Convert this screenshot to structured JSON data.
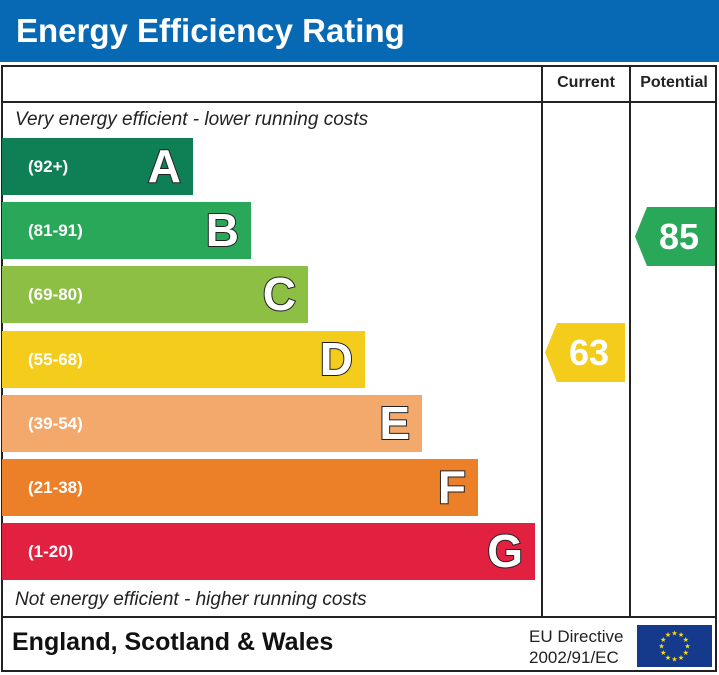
{
  "chart_data": {
    "type": "bar",
    "title": "Energy Efficiency Rating",
    "columns": [
      "Current",
      "Potential"
    ],
    "top_note": "Very energy efficient - lower running costs",
    "bottom_note": "Not energy efficient - higher running costs",
    "bands": [
      {
        "letter": "A",
        "range": "(92+)",
        "color": "#0f7f55"
      },
      {
        "letter": "B",
        "range": "(81-91)",
        "color": "#2aa85a"
      },
      {
        "letter": "C",
        "range": "(69-80)",
        "color": "#8cbf44"
      },
      {
        "letter": "D",
        "range": "(55-68)",
        "color": "#f4cc1c"
      },
      {
        "letter": "E",
        "range": "(39-54)",
        "color": "#f2a96b"
      },
      {
        "letter": "F",
        "range": "(21-38)",
        "color": "#ec8028"
      },
      {
        "letter": "G",
        "range": "(1-20)",
        "color": "#e2203f"
      }
    ],
    "current": {
      "value": "63",
      "band": "D",
      "color": "#f4cc1c"
    },
    "potential": {
      "value": "85",
      "band": "B",
      "color": "#2aa85a"
    }
  },
  "footer": {
    "region": "England, Scotland & Wales",
    "directive_line1": "EU Directive",
    "directive_line2": "2002/91/EC",
    "flag_icon": "eu-flag-icon"
  }
}
